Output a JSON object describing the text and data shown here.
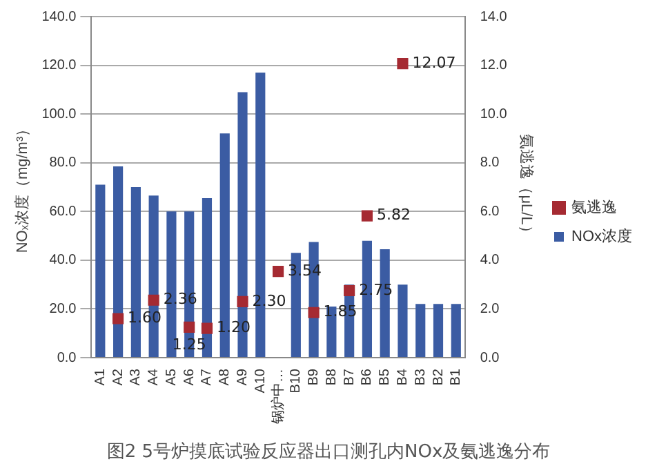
{
  "chart_data": {
    "type": "bar",
    "title": "图2 5号炉摸底试验反应器出口测孔内NOx及氨逃逸分布",
    "ylabel": "NOₓ浓度（mg/m³）",
    "y2label": "氨逃逸（μL/L）",
    "categories": [
      "A1",
      "A2",
      "A3",
      "A4",
      "A5",
      "A6",
      "A7",
      "A8",
      "A9",
      "A10",
      "锅炉中…",
      "B10",
      "B9",
      "B8",
      "B7",
      "B6",
      "B5",
      "B4",
      "B3",
      "B2",
      "B1"
    ],
    "series": [
      {
        "name": "NOx浓度",
        "color": "#3b5ca3",
        "values": [
          71,
          78.5,
          70,
          66.5,
          60,
          60,
          65.5,
          92,
          109,
          117,
          null,
          43,
          47.5,
          21,
          30,
          48,
          44.5,
          30,
          22,
          22,
          22
        ]
      },
      {
        "name": "氨逃逸",
        "type": "scatter",
        "axis": "y2",
        "color": "#a52a32",
        "marker": "square",
        "values": [
          null,
          1.6,
          null,
          2.36,
          null,
          1.25,
          1.2,
          null,
          2.3,
          null,
          3.54,
          null,
          1.85,
          null,
          2.75,
          5.82,
          null,
          12.07,
          null,
          null,
          null
        ],
        "value_labels": [
          null,
          "1.60",
          null,
          "2.36",
          null,
          "1.25",
          "1.20",
          null,
          "2.30",
          null,
          "3.54",
          null,
          "1.85",
          null,
          "2.75",
          "5.82",
          null,
          "12.07",
          null,
          null,
          null
        ]
      }
    ],
    "ylim": [
      0,
      140
    ],
    "yticks": [
      {
        "value": 0,
        "label": "0.0"
      },
      {
        "value": 20,
        "label": "20.0"
      },
      {
        "value": 40,
        "label": "40.0"
      },
      {
        "value": 60,
        "label": "60.0"
      },
      {
        "value": 80,
        "label": "80.0"
      },
      {
        "value": 100,
        "label": "100.0"
      },
      {
        "value": 120,
        "label": "120.0"
      },
      {
        "value": 140,
        "label": "140.0"
      }
    ],
    "y2lim": [
      0,
      14
    ],
    "y2ticks": [
      {
        "value": 0,
        "label": "0.0"
      },
      {
        "value": 2,
        "label": "2.0"
      },
      {
        "value": 4,
        "label": "4.0"
      },
      {
        "value": 6,
        "label": "6.0"
      },
      {
        "value": 8,
        "label": "8.0"
      },
      {
        "value": 10,
        "label": "10.0"
      },
      {
        "value": 12,
        "label": "12.0"
      },
      {
        "value": 14,
        "label": "14.0"
      }
    ],
    "grid": "y",
    "legend": "right"
  }
}
